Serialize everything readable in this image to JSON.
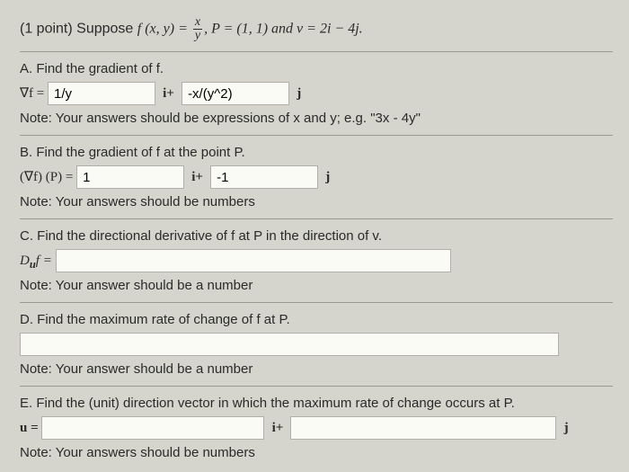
{
  "header": {
    "points": "(1 point)",
    "suppose": "Suppose",
    "fxy": "f (x, y) = ",
    "frac_num": "x",
    "frac_den": "y",
    "pdef": ", P = (1, 1) and v = 2i − 4j."
  },
  "A": {
    "title": "A. Find the gradient of f.",
    "lhs": "∇f = ",
    "val_i": "1/y",
    "plus": "i+",
    "val_j": "-x/(y^2)",
    "j": "j",
    "note": "Note: Your answers should be expressions of x and y; e.g. \"3x - 4y\""
  },
  "B": {
    "title": "B. Find the gradient of f at the point P.",
    "lhs": "(∇f) (P) = ",
    "val_i": "1",
    "plus": "i+",
    "val_j": "-1",
    "j": "j",
    "note": "Note: Your answers should be numbers"
  },
  "C": {
    "title": "C. Find the directional derivative of f at P in the direction of v.",
    "lhs": "D",
    "sub": "u",
    "f": "f = ",
    "val": "",
    "note": "Note: Your answer should be a number"
  },
  "D": {
    "title": "D. Find the maximum rate of change of f at P.",
    "val": "",
    "note": "Note: Your answer should be a number"
  },
  "E": {
    "title": "E. Find the (unit) direction vector in which the maximum rate of change occurs at P.",
    "lhs": "u = ",
    "val_i": "",
    "plus": "i+",
    "val_j": "",
    "j": "j",
    "note": "Note: Your answers should be numbers"
  }
}
